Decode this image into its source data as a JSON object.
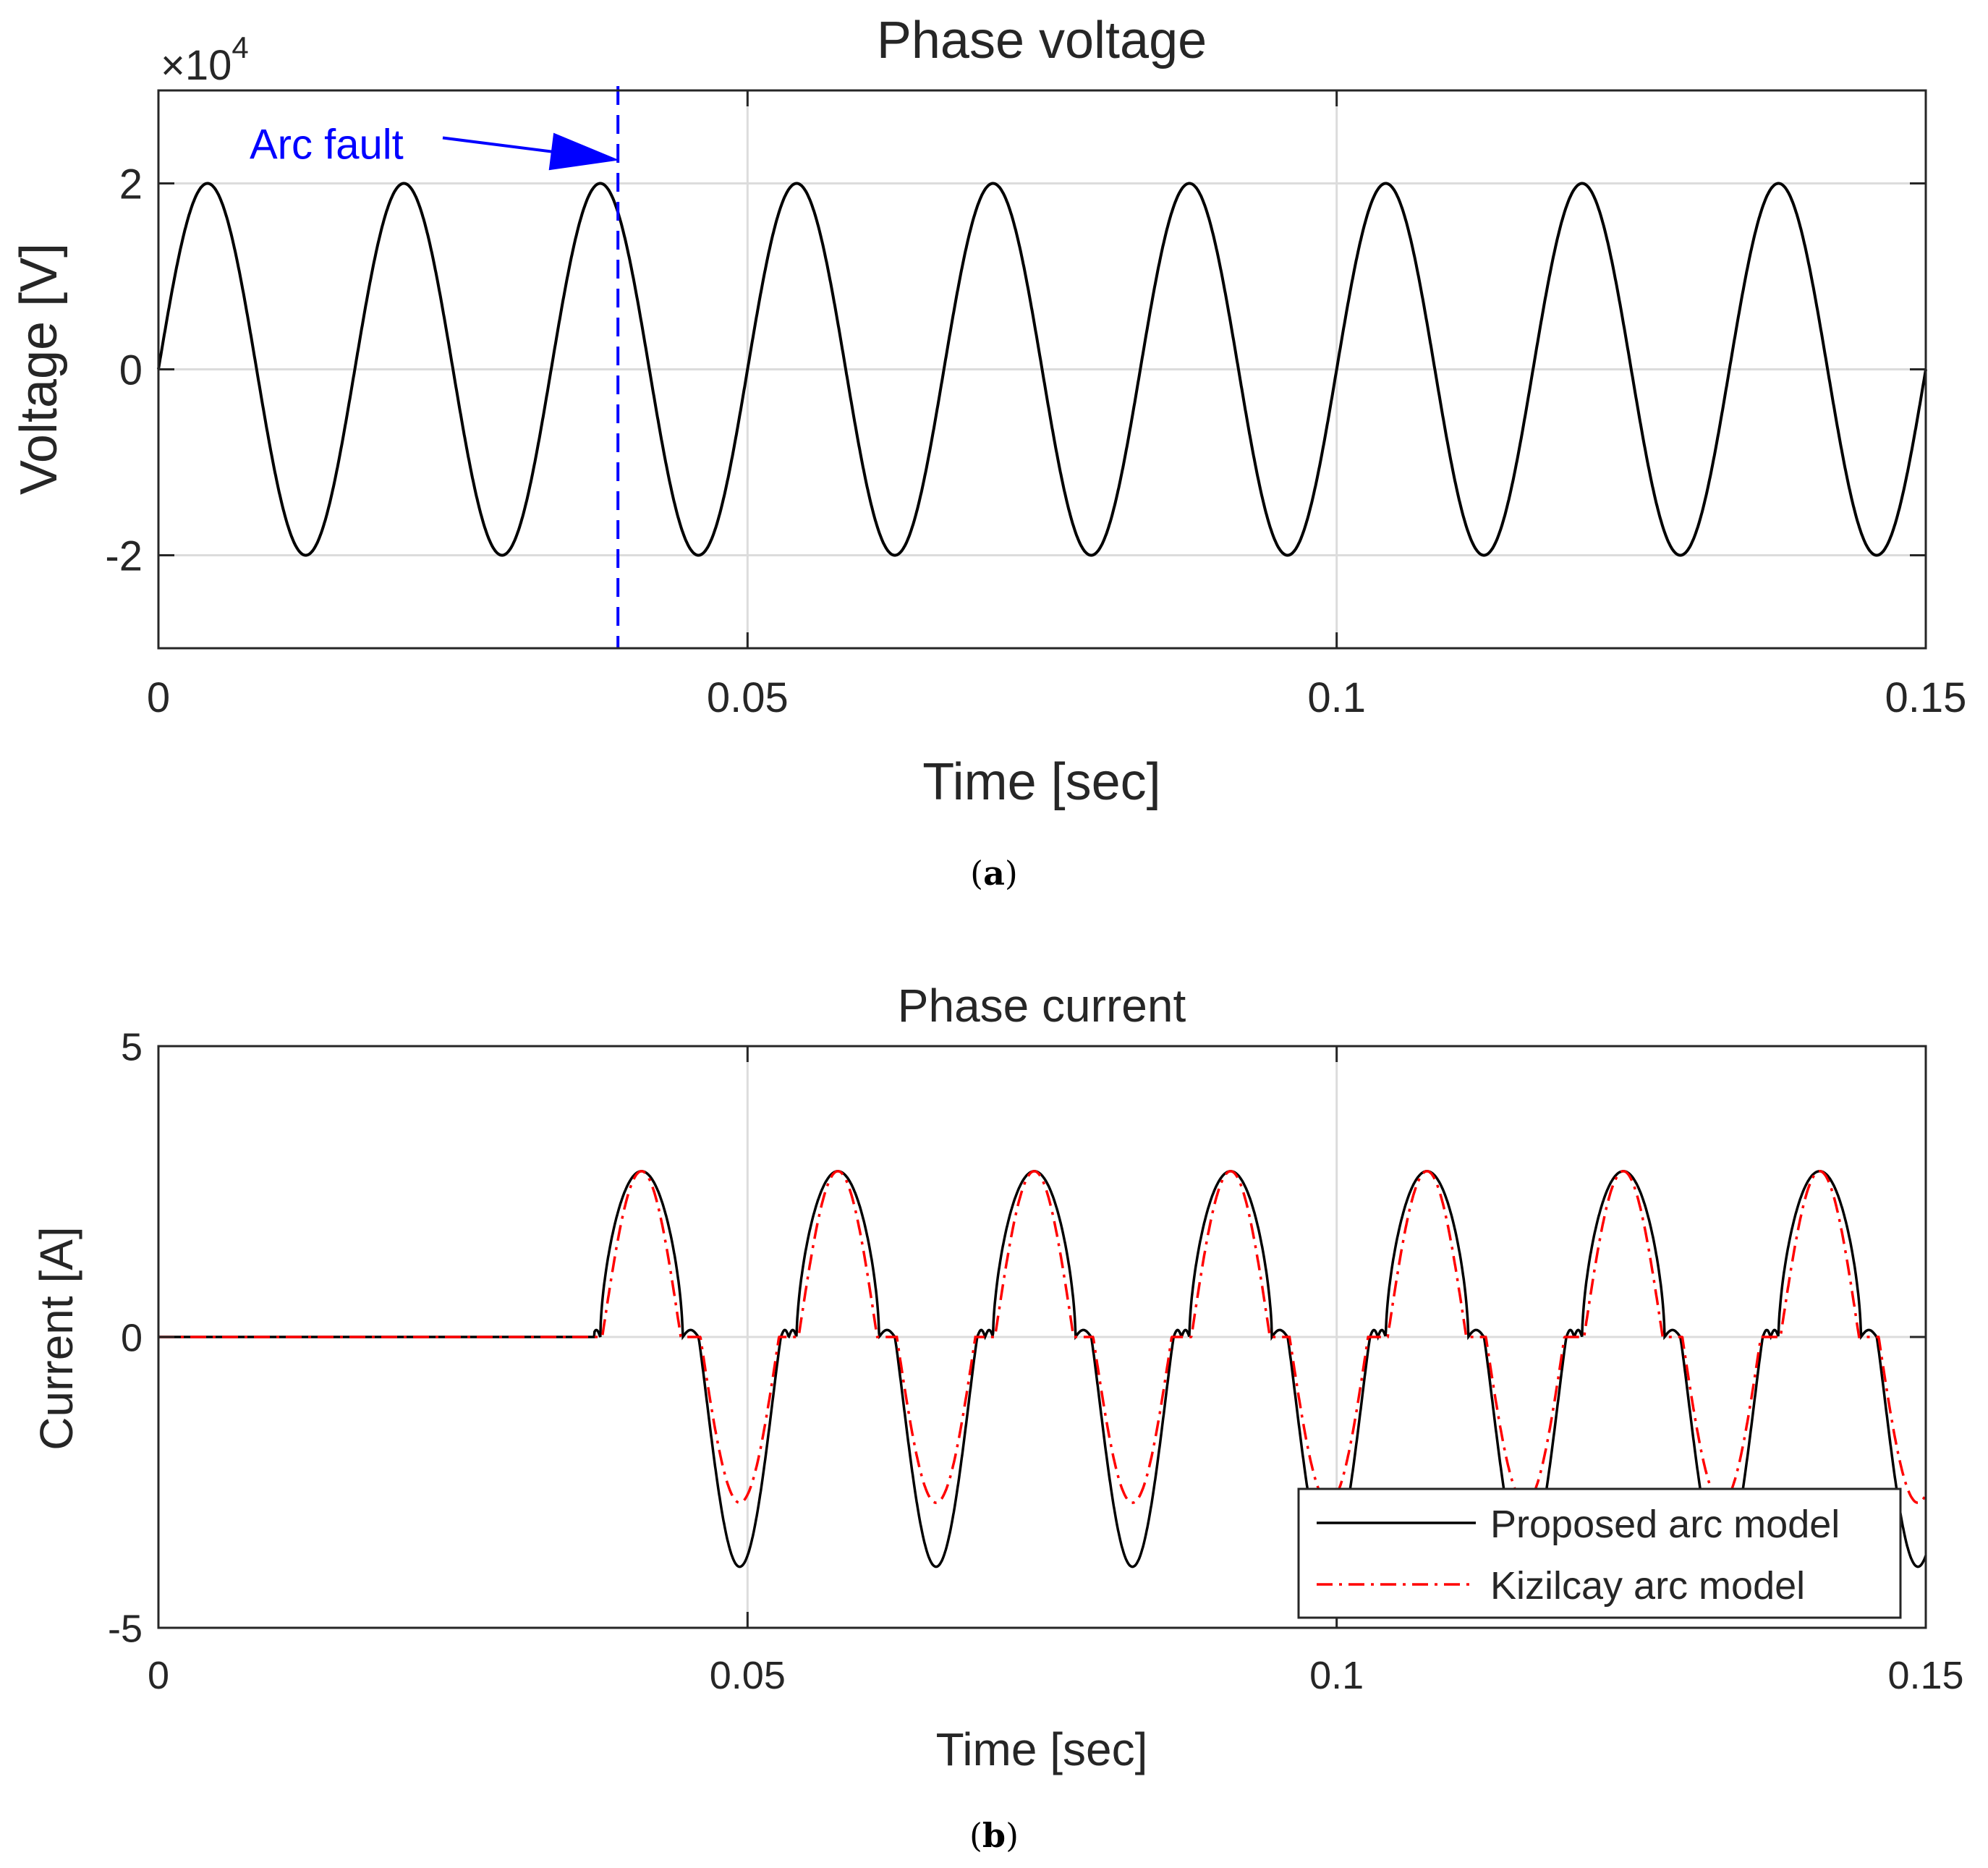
{
  "charts": [
    {
      "type": "line",
      "title": "Phase voltage",
      "xlabel": "Time [sec]",
      "ylabel": "Voltage [V]",
      "caption_letter": "a",
      "xlim": [
        0,
        0.15
      ],
      "ylim": [
        -30000,
        30000
      ],
      "xticks": [
        0,
        0.05,
        0.1,
        0.15
      ],
      "xtick_labels": [
        "0",
        "0.05",
        "0.1",
        "0.15"
      ],
      "yticks": [
        -20000,
        0,
        20000
      ],
      "ytick_labels": [
        "-2",
        "0",
        "2"
      ],
      "y_exponent_prefix": "×10",
      "y_exponent_power": "4",
      "grid": true,
      "series": [
        {
          "kind": "sine",
          "amplitude": 20000,
          "frequency_hz": 60,
          "x_start": 0,
          "x_end": 0.15,
          "color": "#000000"
        }
      ],
      "annotation": {
        "text": "Arc fault",
        "x": 0.039,
        "color": "#0000ff"
      }
    },
    {
      "type": "line",
      "title": "Phase current",
      "xlabel": "Time [sec]",
      "ylabel": "Current [A]",
      "caption_letter": "b",
      "xlim": [
        0,
        0.15
      ],
      "ylim": [
        -5,
        5
      ],
      "xticks": [
        0,
        0.05,
        0.1,
        0.15
      ],
      "xtick_labels": [
        "0",
        "0.05",
        "0.1",
        "0.15"
      ],
      "yticks": [
        -5,
        0,
        5
      ],
      "ytick_labels": [
        "-5",
        "0",
        "5"
      ],
      "grid": true,
      "legend": {
        "position": "bottom-right",
        "entries": [
          "Proposed arc model",
          "Kizilcay arc model"
        ]
      },
      "fault_time": 0.037,
      "series": [
        {
          "name": "Proposed arc model",
          "color": "#000000",
          "style": "solid",
          "peak_positive": 2.85,
          "peak_negative": -3.95
        },
        {
          "name": "Kizilcay arc model",
          "color": "#ff0000",
          "style": "dash-dot",
          "peak_positive": 2.85,
          "peak_negative": -2.85
        }
      ]
    }
  ],
  "colors": {
    "grid": "#dcdcdc",
    "axis": "#262626",
    "voltage": "#000000",
    "annotation": "#0000ff"
  }
}
